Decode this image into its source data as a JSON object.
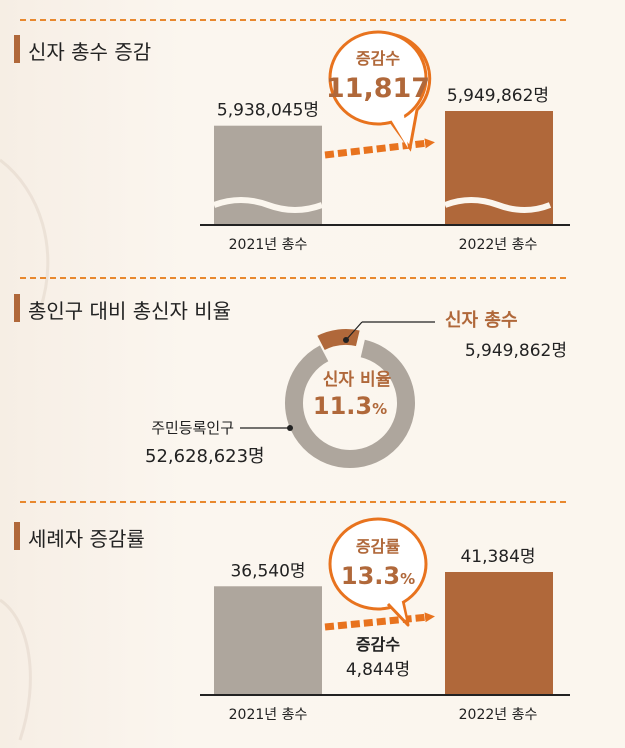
{
  "sections": [
    {
      "title": "신자 총수 증감"
    },
    {
      "title": "총인구 대비 총신자 비율"
    },
    {
      "title": "세례자 증감률"
    }
  ],
  "chart_data": [
    {
      "type": "bar",
      "categories": [
        "2021년 총수",
        "2022년 총수"
      ],
      "values": [
        5938045,
        5949862
      ],
      "value_labels": [
        "5,938,045명",
        "5,949,862명"
      ],
      "axis_break": true,
      "callout": {
        "label": "증감수",
        "value": "11,817"
      },
      "colors": [
        "#aea69d",
        "#b0683a"
      ]
    },
    {
      "type": "pie",
      "style": "donut",
      "slices": [
        {
          "name": "신자 총수",
          "value": 5949862,
          "value_label": "5,949,862명",
          "color": "#b0683a"
        },
        {
          "name": "주민등록인구",
          "value": 52628623,
          "value_label": "52,628,623명",
          "color": "#aea69d"
        }
      ],
      "center": {
        "label": "신자 비율",
        "value": "11.3",
        "unit": "%"
      }
    },
    {
      "type": "bar",
      "categories": [
        "2021년 총수",
        "2022년 총수"
      ],
      "values": [
        36540,
        41384
      ],
      "value_labels": [
        "36,540명",
        "41,384명"
      ],
      "callout": {
        "label": "증감률",
        "value": "13.3",
        "unit": "%"
      },
      "note": {
        "label": "증감수",
        "value": "4,844명"
      },
      "colors": [
        "#aea69d",
        "#b0683a"
      ]
    }
  ],
  "colors": {
    "accent": "#b0683a",
    "arrow": "#e8731e",
    "dash": "#e8882e",
    "gray": "#aea69d",
    "text": "#222222"
  }
}
